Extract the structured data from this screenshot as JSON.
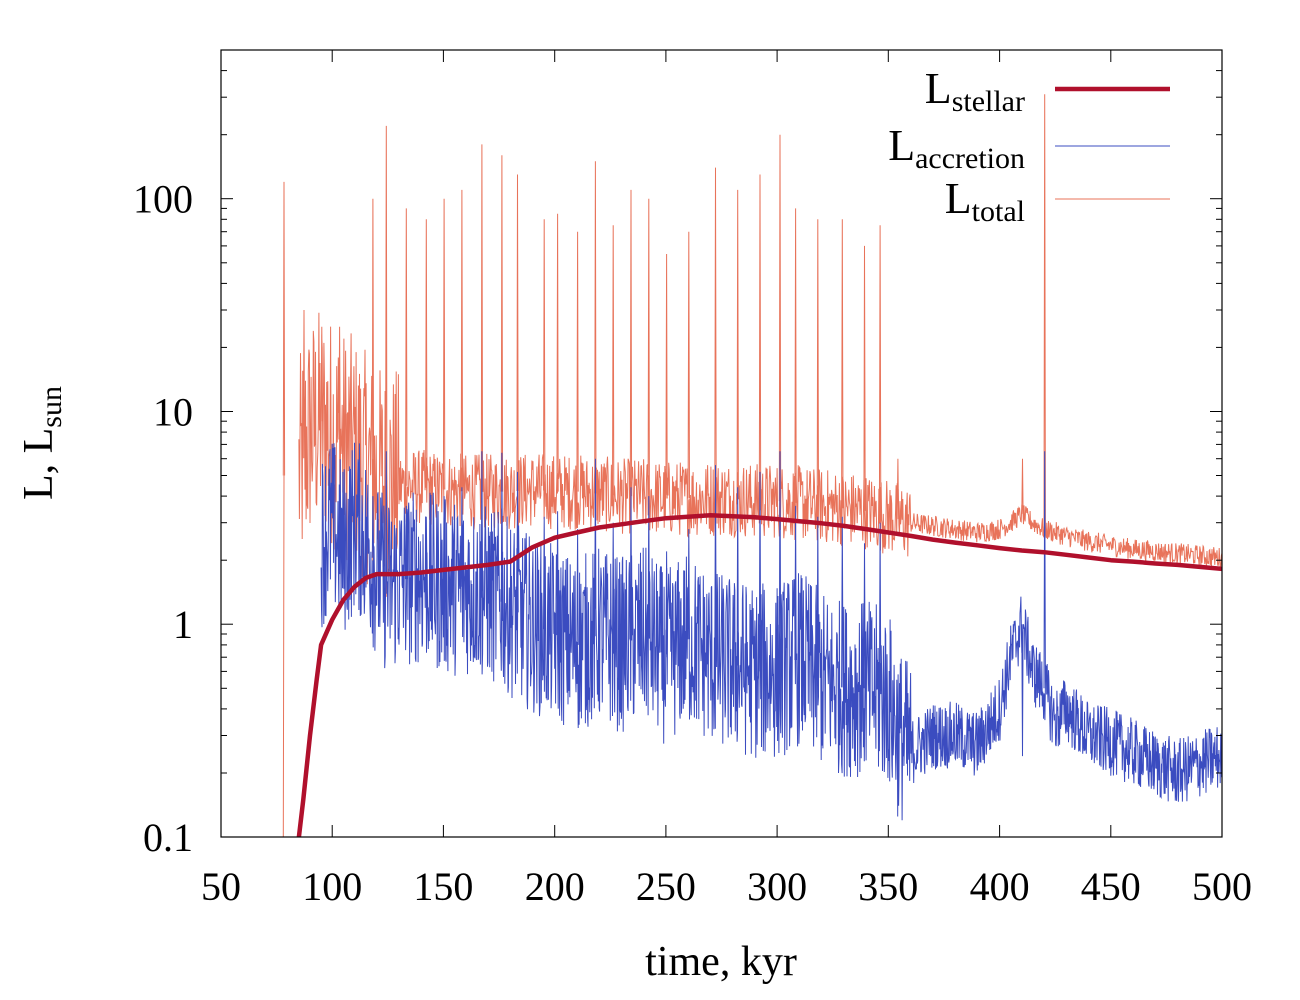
{
  "chart_data": {
    "type": "line",
    "title": "",
    "xlabel": "time, kyr",
    "ylabel": {
      "main": "L, L",
      "sub": "sun"
    },
    "xlim": [
      50,
      500
    ],
    "ylim": [
      0.1,
      500
    ],
    "yscale": "log",
    "grid": false,
    "legend_position": "top-right",
    "x_ticks": [
      50,
      100,
      150,
      200,
      250,
      300,
      350,
      400,
      450,
      500
    ],
    "x_tick_labels": [
      "50",
      "100",
      "150",
      "200",
      "250",
      "300",
      "350",
      "400",
      "450",
      "500"
    ],
    "y_ticks": [
      0.1,
      1,
      10,
      100
    ],
    "y_tick_labels": [
      "0.1",
      "1",
      "10",
      "100"
    ],
    "series": [
      {
        "name": "L_stellar",
        "label_main": "L",
        "label_sub": "stellar",
        "color": "#b0102c",
        "style": "thick",
        "x": [
          85,
          87,
          90,
          93,
          95,
          100,
          105,
          110,
          115,
          120,
          130,
          140,
          150,
          160,
          170,
          180,
          190,
          200,
          210,
          220,
          230,
          240,
          250,
          260,
          270,
          280,
          290,
          300,
          310,
          320,
          330,
          340,
          350,
          360,
          370,
          380,
          390,
          400,
          410,
          420,
          430,
          440,
          450,
          460,
          470,
          480,
          490,
          500
        ],
        "values": [
          0.1,
          0.15,
          0.3,
          0.55,
          0.8,
          1.05,
          1.3,
          1.5,
          1.65,
          1.72,
          1.72,
          1.75,
          1.8,
          1.85,
          1.9,
          1.97,
          2.3,
          2.55,
          2.7,
          2.85,
          2.95,
          3.05,
          3.15,
          3.2,
          3.25,
          3.22,
          3.18,
          3.12,
          3.05,
          2.98,
          2.9,
          2.8,
          2.7,
          2.6,
          2.5,
          2.42,
          2.35,
          2.28,
          2.22,
          2.18,
          2.12,
          2.06,
          2.0,
          1.97,
          1.93,
          1.9,
          1.86,
          1.82
        ]
      },
      {
        "name": "L_accretion",
        "label_main": "L",
        "label_sub": "accretion",
        "color": "#3b4cc0",
        "style": "thin",
        "x": [
          95,
          100,
          105,
          110,
          115,
          120,
          125,
          130,
          140,
          150,
          160,
          170,
          180,
          190,
          200,
          210,
          220,
          230,
          240,
          250,
          260,
          270,
          280,
          290,
          300,
          310,
          320,
          330,
          340,
          350,
          355,
          360,
          370,
          380,
          390,
          400,
          405,
          410,
          415,
          420,
          425,
          430,
          440,
          450,
          460,
          470,
          480,
          490,
          500
        ],
        "values": [
          2.5,
          3.0,
          2.2,
          3.0,
          2.5,
          1.8,
          1.5,
          1.6,
          1.7,
          1.5,
          1.5,
          1.4,
          1.2,
          1.0,
          0.9,
          0.8,
          0.9,
          0.8,
          0.9,
          0.7,
          0.85,
          0.7,
          0.65,
          0.6,
          0.6,
          0.7,
          0.55,
          0.5,
          0.5,
          0.45,
          0.3,
          0.25,
          0.3,
          0.3,
          0.27,
          0.4,
          0.7,
          1.0,
          0.6,
          0.5,
          0.35,
          0.4,
          0.3,
          0.28,
          0.25,
          0.22,
          0.2,
          0.22,
          0.24
        ]
      },
      {
        "name": "L_total",
        "label_main": "L",
        "label_sub": "total",
        "color": "#e8735a",
        "style": "thin",
        "x": [
          85,
          90,
          95,
          100,
          105,
          110,
          115,
          120,
          130,
          140,
          150,
          160,
          170,
          180,
          190,
          200,
          210,
          220,
          230,
          240,
          250,
          260,
          270,
          280,
          290,
          300,
          310,
          320,
          330,
          340,
          350,
          360,
          370,
          380,
          390,
          400,
          405,
          410,
          415,
          420,
          425,
          430,
          440,
          450,
          460,
          470,
          480,
          490,
          500
        ],
        "values": [
          5,
          8,
          9,
          8,
          7,
          6.5,
          5.5,
          4.8,
          4.5,
          4.4,
          4.3,
          4.2,
          4.2,
          4.2,
          4.3,
          4.2,
          4.2,
          4.1,
          4.0,
          4.0,
          3.9,
          3.9,
          3.9,
          3.9,
          3.8,
          3.8,
          3.7,
          3.6,
          3.5,
          3.4,
          3.2,
          3.0,
          2.9,
          2.8,
          2.7,
          2.8,
          3.0,
          3.3,
          3.0,
          2.8,
          2.7,
          2.6,
          2.45,
          2.35,
          2.25,
          2.2,
          2.15,
          2.1,
          2.05
        ]
      }
    ],
    "outbursts": [
      {
        "x": 78,
        "peak": 120
      },
      {
        "x": 87,
        "peak": 30
      },
      {
        "x": 95,
        "peak": 25
      },
      {
        "x": 103,
        "peak": 25
      },
      {
        "x": 118,
        "peak": 100
      },
      {
        "x": 124,
        "peak": 220
      },
      {
        "x": 133,
        "peak": 90
      },
      {
        "x": 142,
        "peak": 80
      },
      {
        "x": 150,
        "peak": 100
      },
      {
        "x": 158,
        "peak": 110
      },
      {
        "x": 167,
        "peak": 180
      },
      {
        "x": 176,
        "peak": 160
      },
      {
        "x": 183,
        "peak": 130
      },
      {
        "x": 195,
        "peak": 80
      },
      {
        "x": 201,
        "peak": 85
      },
      {
        "x": 210,
        "peak": 70
      },
      {
        "x": 218,
        "peak": 150
      },
      {
        "x": 226,
        "peak": 75
      },
      {
        "x": 234,
        "peak": 110
      },
      {
        "x": 242,
        "peak": 100
      },
      {
        "x": 250,
        "peak": 55
      },
      {
        "x": 260,
        "peak": 70
      },
      {
        "x": 272,
        "peak": 140
      },
      {
        "x": 282,
        "peak": 110
      },
      {
        "x": 292,
        "peak": 130
      },
      {
        "x": 301,
        "peak": 200
      },
      {
        "x": 308,
        "peak": 90
      },
      {
        "x": 318,
        "peak": 80
      },
      {
        "x": 329,
        "peak": 80
      },
      {
        "x": 339,
        "peak": 60
      },
      {
        "x": 346,
        "peak": 75
      },
      {
        "x": 354,
        "peak": 6
      },
      {
        "x": 410,
        "peak": 6
      },
      {
        "x": 420,
        "peak": 310
      }
    ]
  }
}
